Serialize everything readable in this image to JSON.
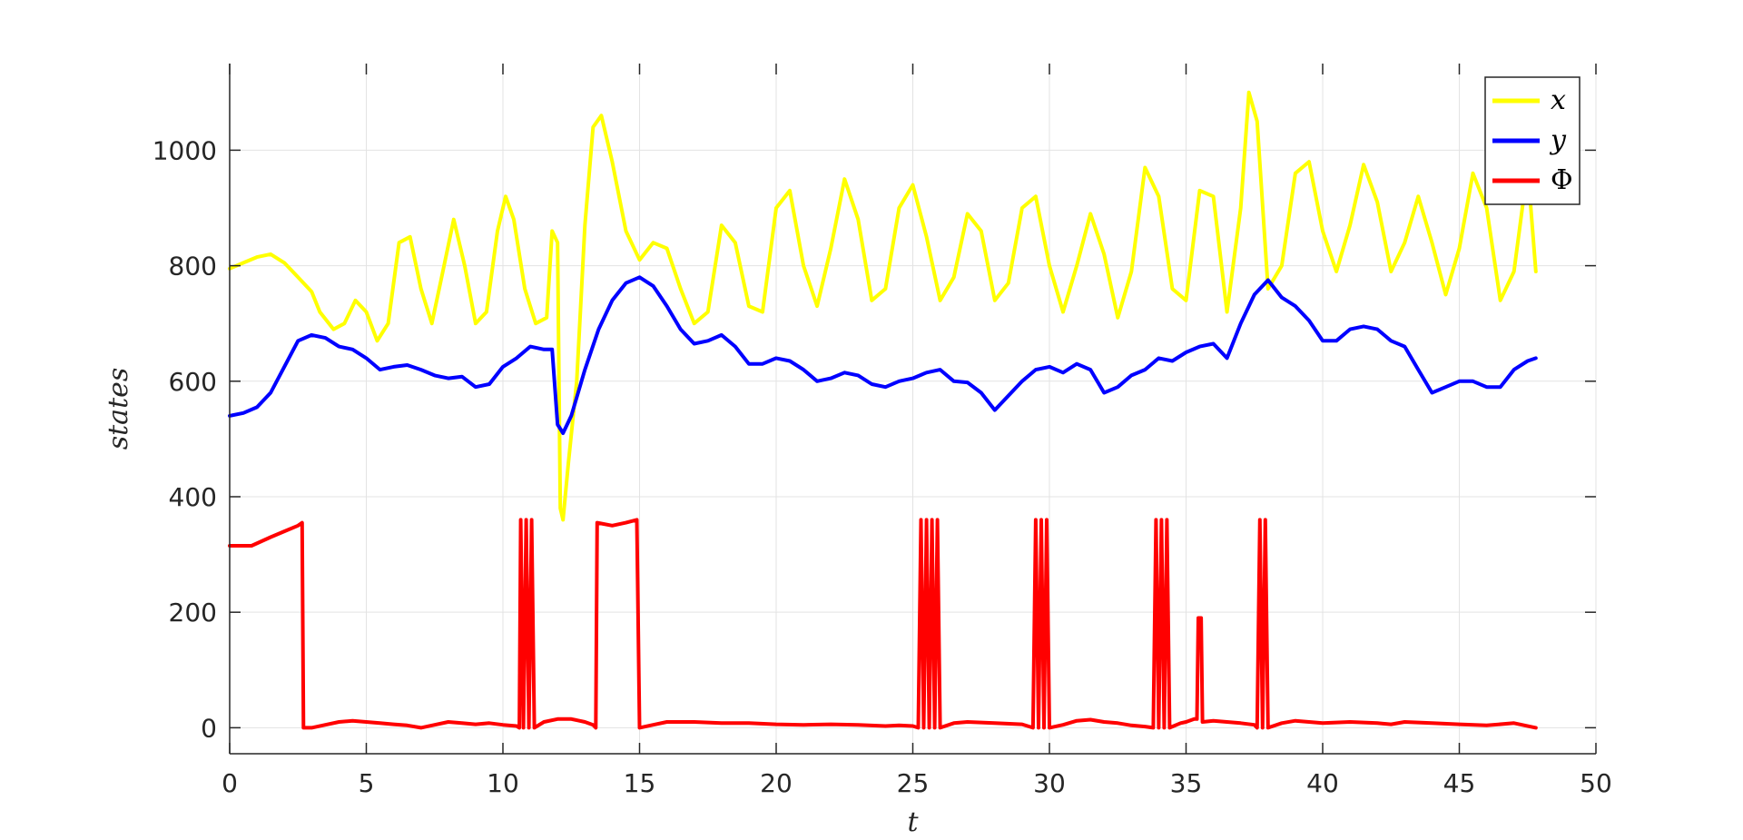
{
  "chart_data": {
    "type": "line",
    "title": "",
    "xlabel": "t",
    "ylabel": "states",
    "xlim": [
      0,
      50
    ],
    "ylim": [
      -45,
      1150
    ],
    "xticks": [
      0,
      5,
      10,
      15,
      20,
      25,
      30,
      35,
      40,
      45,
      50
    ],
    "yticks": [
      0,
      200,
      400,
      600,
      800,
      1000
    ],
    "grid": true,
    "legend_position": "top-right",
    "series": [
      {
        "name": "x",
        "color": "#ffff00",
        "points": [
          [
            0,
            795
          ],
          [
            0.5,
            805
          ],
          [
            1,
            815
          ],
          [
            1.5,
            820
          ],
          [
            2,
            805
          ],
          [
            2.5,
            780
          ],
          [
            3,
            755
          ],
          [
            3.3,
            720
          ],
          [
            3.8,
            690
          ],
          [
            4.2,
            700
          ],
          [
            4.6,
            740
          ],
          [
            5,
            720
          ],
          [
            5.4,
            670
          ],
          [
            5.8,
            700
          ],
          [
            6.2,
            840
          ],
          [
            6.6,
            850
          ],
          [
            7,
            760
          ],
          [
            7.4,
            700
          ],
          [
            7.8,
            790
          ],
          [
            8.2,
            880
          ],
          [
            8.6,
            800
          ],
          [
            9,
            700
          ],
          [
            9.4,
            720
          ],
          [
            9.8,
            860
          ],
          [
            10.1,
            920
          ],
          [
            10.4,
            880
          ],
          [
            10.8,
            760
          ],
          [
            11.2,
            700
          ],
          [
            11.6,
            710
          ],
          [
            11.8,
            860
          ],
          [
            12,
            840
          ],
          [
            12.1,
            380
          ],
          [
            12.2,
            360
          ],
          [
            12.4,
            460
          ],
          [
            12.7,
            600
          ],
          [
            13,
            870
          ],
          [
            13.3,
            1040
          ],
          [
            13.6,
            1060
          ],
          [
            14,
            980
          ],
          [
            14.5,
            860
          ],
          [
            15,
            810
          ],
          [
            15.5,
            840
          ],
          [
            16,
            830
          ],
          [
            16.5,
            760
          ],
          [
            17,
            700
          ],
          [
            17.5,
            720
          ],
          [
            18,
            870
          ],
          [
            18.5,
            840
          ],
          [
            19,
            730
          ],
          [
            19.5,
            720
          ],
          [
            20,
            900
          ],
          [
            20.5,
            930
          ],
          [
            21,
            800
          ],
          [
            21.5,
            730
          ],
          [
            22,
            830
          ],
          [
            22.5,
            950
          ],
          [
            23,
            880
          ],
          [
            23.5,
            740
          ],
          [
            24,
            760
          ],
          [
            24.5,
            900
          ],
          [
            25,
            940
          ],
          [
            25.5,
            850
          ],
          [
            26,
            740
          ],
          [
            26.5,
            780
          ],
          [
            27,
            890
          ],
          [
            27.5,
            860
          ],
          [
            28,
            740
          ],
          [
            28.5,
            770
          ],
          [
            29,
            900
          ],
          [
            29.5,
            920
          ],
          [
            30,
            800
          ],
          [
            30.5,
            720
          ],
          [
            31,
            800
          ],
          [
            31.5,
            890
          ],
          [
            32,
            820
          ],
          [
            32.5,
            710
          ],
          [
            33,
            790
          ],
          [
            33.5,
            970
          ],
          [
            34,
            920
          ],
          [
            34.5,
            760
          ],
          [
            35,
            740
          ],
          [
            35.5,
            930
          ],
          [
            36,
            920
          ],
          [
            36.5,
            720
          ],
          [
            37,
            900
          ],
          [
            37.3,
            1100
          ],
          [
            37.6,
            1050
          ],
          [
            38,
            760
          ],
          [
            38.5,
            800
          ],
          [
            39,
            960
          ],
          [
            39.5,
            980
          ],
          [
            40,
            860
          ],
          [
            40.5,
            790
          ],
          [
            41,
            870
          ],
          [
            41.5,
            975
          ],
          [
            42,
            910
          ],
          [
            42.5,
            790
          ],
          [
            43,
            840
          ],
          [
            43.5,
            920
          ],
          [
            44,
            840
          ],
          [
            44.5,
            750
          ],
          [
            45,
            830
          ],
          [
            45.5,
            960
          ],
          [
            46,
            900
          ],
          [
            46.5,
            740
          ],
          [
            47,
            790
          ],
          [
            47.5,
            970
          ],
          [
            47.8,
            790
          ]
        ]
      },
      {
        "name": "y",
        "color": "#0000ff",
        "points": [
          [
            0,
            540
          ],
          [
            0.5,
            545
          ],
          [
            1,
            555
          ],
          [
            1.5,
            580
          ],
          [
            2,
            625
          ],
          [
            2.5,
            670
          ],
          [
            3,
            680
          ],
          [
            3.5,
            675
          ],
          [
            4,
            660
          ],
          [
            4.5,
            655
          ],
          [
            5,
            640
          ],
          [
            5.5,
            620
          ],
          [
            6,
            625
          ],
          [
            6.5,
            628
          ],
          [
            7,
            620
          ],
          [
            7.5,
            610
          ],
          [
            8,
            605
          ],
          [
            8.5,
            608
          ],
          [
            9,
            590
          ],
          [
            9.5,
            595
          ],
          [
            10,
            625
          ],
          [
            10.5,
            640
          ],
          [
            11,
            660
          ],
          [
            11.5,
            655
          ],
          [
            11.8,
            655
          ],
          [
            12,
            525
          ],
          [
            12.2,
            510
          ],
          [
            12.5,
            540
          ],
          [
            13,
            620
          ],
          [
            13.5,
            690
          ],
          [
            14,
            740
          ],
          [
            14.5,
            770
          ],
          [
            15,
            780
          ],
          [
            15.5,
            765
          ],
          [
            16,
            730
          ],
          [
            16.5,
            690
          ],
          [
            17,
            665
          ],
          [
            17.5,
            670
          ],
          [
            18,
            680
          ],
          [
            18.5,
            660
          ],
          [
            19,
            630
          ],
          [
            19.5,
            630
          ],
          [
            20,
            640
          ],
          [
            20.5,
            635
          ],
          [
            21,
            620
          ],
          [
            21.5,
            600
          ],
          [
            22,
            605
          ],
          [
            22.5,
            615
          ],
          [
            23,
            610
          ],
          [
            23.5,
            595
          ],
          [
            24,
            590
          ],
          [
            24.5,
            600
          ],
          [
            25,
            605
          ],
          [
            25.5,
            615
          ],
          [
            26,
            620
          ],
          [
            26.5,
            600
          ],
          [
            27,
            598
          ],
          [
            27.5,
            580
          ],
          [
            28,
            550
          ],
          [
            28.5,
            575
          ],
          [
            29,
            600
          ],
          [
            29.5,
            620
          ],
          [
            30,
            625
          ],
          [
            30.5,
            615
          ],
          [
            31,
            630
          ],
          [
            31.5,
            620
          ],
          [
            32,
            580
          ],
          [
            32.5,
            590
          ],
          [
            33,
            610
          ],
          [
            33.5,
            620
          ],
          [
            34,
            640
          ],
          [
            34.5,
            635
          ],
          [
            35,
            650
          ],
          [
            35.5,
            660
          ],
          [
            36,
            665
          ],
          [
            36.5,
            640
          ],
          [
            37,
            700
          ],
          [
            37.5,
            750
          ],
          [
            38,
            775
          ],
          [
            38.5,
            745
          ],
          [
            39,
            730
          ],
          [
            39.5,
            705
          ],
          [
            40,
            670
          ],
          [
            40.5,
            670
          ],
          [
            41,
            690
          ],
          [
            41.5,
            695
          ],
          [
            42,
            690
          ],
          [
            42.5,
            670
          ],
          [
            43,
            660
          ],
          [
            43.5,
            620
          ],
          [
            44,
            580
          ],
          [
            44.5,
            590
          ],
          [
            45,
            600
          ],
          [
            45.5,
            600
          ],
          [
            46,
            590
          ],
          [
            46.5,
            590
          ],
          [
            47,
            620
          ],
          [
            47.5,
            635
          ],
          [
            47.8,
            640
          ]
        ]
      },
      {
        "name": "Φ",
        "color": "#ff0000",
        "points": [
          [
            0,
            315
          ],
          [
            0.8,
            315
          ],
          [
            1.5,
            330
          ],
          [
            2,
            340
          ],
          [
            2.5,
            350
          ],
          [
            2.65,
            355
          ],
          [
            2.7,
            0
          ],
          [
            3,
            0
          ],
          [
            3.5,
            5
          ],
          [
            4,
            10
          ],
          [
            4.5,
            12
          ],
          [
            5,
            10
          ],
          [
            5.5,
            8
          ],
          [
            6,
            6
          ],
          [
            6.5,
            4
          ],
          [
            7,
            0
          ],
          [
            7.5,
            5
          ],
          [
            8,
            10
          ],
          [
            8.5,
            8
          ],
          [
            9,
            6
          ],
          [
            9.5,
            8
          ],
          [
            10,
            5
          ],
          [
            10.5,
            3
          ],
          [
            10.6,
            0
          ],
          [
            10.65,
            360
          ],
          [
            10.75,
            0
          ],
          [
            10.85,
            360
          ],
          [
            10.95,
            0
          ],
          [
            11.05,
            360
          ],
          [
            11.15,
            0
          ],
          [
            11.5,
            10
          ],
          [
            12,
            15
          ],
          [
            12.5,
            15
          ],
          [
            13,
            10
          ],
          [
            13.3,
            5
          ],
          [
            13.4,
            0
          ],
          [
            13.45,
            355
          ],
          [
            14,
            350
          ],
          [
            14.5,
            355
          ],
          [
            14.9,
            360
          ],
          [
            15,
            0
          ],
          [
            15.5,
            5
          ],
          [
            16,
            10
          ],
          [
            17,
            10
          ],
          [
            18,
            8
          ],
          [
            19,
            8
          ],
          [
            20,
            6
          ],
          [
            21,
            5
          ],
          [
            22,
            6
          ],
          [
            23,
            5
          ],
          [
            24,
            3
          ],
          [
            24.5,
            4
          ],
          [
            25,
            3
          ],
          [
            25.2,
            0
          ],
          [
            25.3,
            360
          ],
          [
            25.4,
            0
          ],
          [
            25.5,
            360
          ],
          [
            25.6,
            0
          ],
          [
            25.7,
            360
          ],
          [
            25.8,
            0
          ],
          [
            25.9,
            360
          ],
          [
            26,
            0
          ],
          [
            26.5,
            8
          ],
          [
            27,
            10
          ],
          [
            28,
            8
          ],
          [
            29,
            6
          ],
          [
            29.4,
            0
          ],
          [
            29.5,
            360
          ],
          [
            29.6,
            0
          ],
          [
            29.7,
            360
          ],
          [
            29.8,
            0
          ],
          [
            29.9,
            360
          ],
          [
            30,
            0
          ],
          [
            30.5,
            5
          ],
          [
            31,
            12
          ],
          [
            31.5,
            14
          ],
          [
            32,
            10
          ],
          [
            32.5,
            8
          ],
          [
            33,
            4
          ],
          [
            33.5,
            2
          ],
          [
            33.8,
            0
          ],
          [
            33.9,
            360
          ],
          [
            34,
            0
          ],
          [
            34.1,
            360
          ],
          [
            34.2,
            0
          ],
          [
            34.3,
            360
          ],
          [
            34.4,
            0
          ],
          [
            34.8,
            8
          ],
          [
            35,
            10
          ],
          [
            35.3,
            15
          ],
          [
            35.4,
            15
          ],
          [
            35.45,
            190
          ],
          [
            35.55,
            190
          ],
          [
            35.6,
            10
          ],
          [
            36,
            12
          ],
          [
            36.5,
            10
          ],
          [
            37,
            8
          ],
          [
            37.5,
            5
          ],
          [
            37.6,
            0
          ],
          [
            37.7,
            360
          ],
          [
            37.8,
            0
          ],
          [
            37.9,
            360
          ],
          [
            38,
            0
          ],
          [
            38.5,
            8
          ],
          [
            39,
            12
          ],
          [
            39.5,
            10
          ],
          [
            40,
            8
          ],
          [
            41,
            10
          ],
          [
            42,
            8
          ],
          [
            42.5,
            6
          ],
          [
            43,
            10
          ],
          [
            44,
            8
          ],
          [
            45,
            6
          ],
          [
            46,
            4
          ],
          [
            47,
            8
          ],
          [
            47.8,
            0
          ]
        ]
      }
    ]
  }
}
